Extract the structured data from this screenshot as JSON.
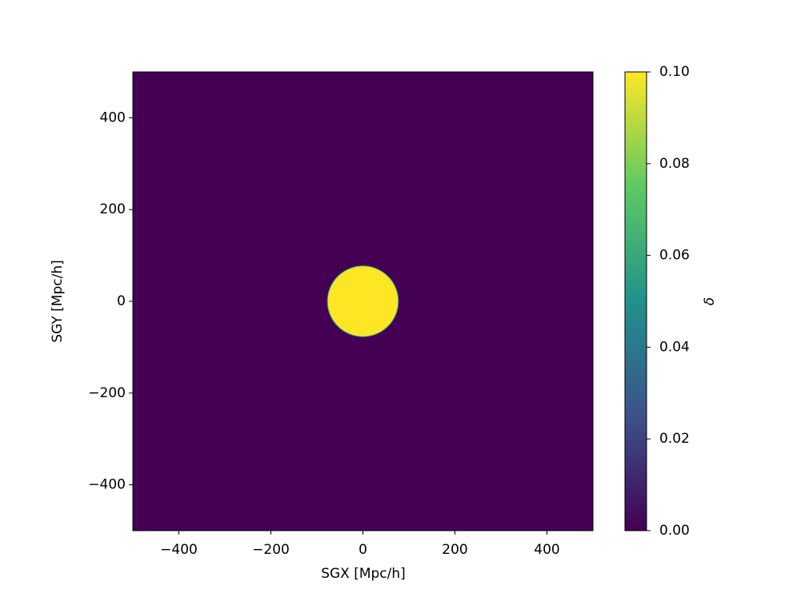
{
  "chart_data": {
    "type": "heatmap",
    "xlabel": "SGX [Mpc/h]",
    "ylabel": "SGY [Mpc/h]",
    "xlim": [
      -500,
      500
    ],
    "ylim": [
      -500,
      500
    ],
    "xticks": [
      {
        "value": -400,
        "label": "−400"
      },
      {
        "value": -200,
        "label": "−200"
      },
      0,
      200,
      400
    ],
    "yticks": [
      {
        "value": -400,
        "label": "−400"
      },
      {
        "value": -200,
        "label": "−200"
      },
      0,
      200,
      400
    ],
    "colormap": "viridis",
    "background_value": 0,
    "disk": {
      "center": [
        0,
        0
      ],
      "radius": 77,
      "value": 0.1
    },
    "colorbar": {
      "label": "δ",
      "clim": [
        0,
        0.1
      ],
      "ticks": [
        {
          "value": 0,
          "label": "0.00"
        },
        {
          "value": 0.02,
          "label": "0.02"
        },
        {
          "value": 0.04,
          "label": "0.04"
        },
        {
          "value": 0.06,
          "label": "0.06"
        },
        {
          "value": 0.08,
          "label": "0.08"
        },
        {
          "value": 0.1,
          "label": "0.10"
        }
      ]
    }
  }
}
